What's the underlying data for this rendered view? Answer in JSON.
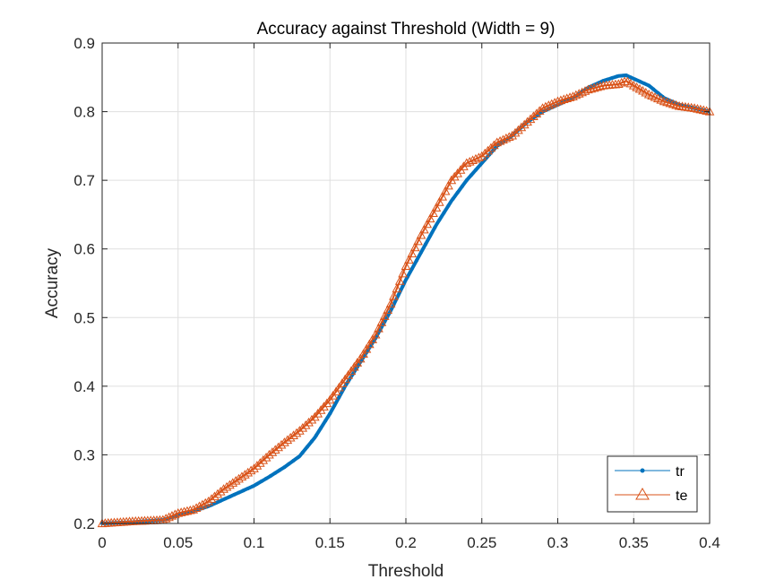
{
  "chart_data": {
    "type": "line",
    "title": "Accuracy against Threshold (Width = 9)",
    "xlabel": "Threshold",
    "ylabel": "Accuracy",
    "xlim": [
      0,
      0.4
    ],
    "ylim": [
      0.2,
      0.9
    ],
    "xticks": [
      0,
      0.05,
      0.1,
      0.15,
      0.2,
      0.25,
      0.3,
      0.35,
      0.4
    ],
    "xtick_labels": [
      "0",
      "0.05",
      "0.1",
      "0.15",
      "0.2",
      "0.25",
      "0.3",
      "0.35",
      "0.4"
    ],
    "yticks": [
      0.2,
      0.3,
      0.4,
      0.5,
      0.6,
      0.7,
      0.8,
      0.9
    ],
    "ytick_labels": [
      "0.2",
      "0.3",
      "0.4",
      "0.5",
      "0.6",
      "0.7",
      "0.8",
      "0.9"
    ],
    "grid": true,
    "legend_position": "bottom-right",
    "series": [
      {
        "name": "tr",
        "color": "#0072BD",
        "marker": "dot",
        "x": [
          0,
          0.02,
          0.04,
          0.05,
          0.06,
          0.07,
          0.08,
          0.09,
          0.1,
          0.11,
          0.12,
          0.13,
          0.14,
          0.15,
          0.16,
          0.17,
          0.18,
          0.19,
          0.2,
          0.21,
          0.22,
          0.23,
          0.24,
          0.25,
          0.26,
          0.27,
          0.28,
          0.29,
          0.3,
          0.31,
          0.32,
          0.33,
          0.34,
          0.345,
          0.35,
          0.36,
          0.37,
          0.38,
          0.39,
          0.4
        ],
        "y": [
          0.2,
          0.202,
          0.205,
          0.212,
          0.218,
          0.225,
          0.235,
          0.245,
          0.255,
          0.268,
          0.282,
          0.298,
          0.325,
          0.36,
          0.4,
          0.435,
          0.47,
          0.51,
          0.555,
          0.595,
          0.635,
          0.67,
          0.7,
          0.725,
          0.75,
          0.765,
          0.785,
          0.8,
          0.81,
          0.82,
          0.835,
          0.845,
          0.852,
          0.853,
          0.848,
          0.838,
          0.82,
          0.81,
          0.805,
          0.8
        ]
      },
      {
        "name": "te",
        "color": "#D95319",
        "marker": "triangle",
        "x": [
          0,
          0.02,
          0.04,
          0.05,
          0.06,
          0.07,
          0.08,
          0.09,
          0.1,
          0.11,
          0.12,
          0.13,
          0.14,
          0.15,
          0.16,
          0.17,
          0.18,
          0.19,
          0.2,
          0.21,
          0.22,
          0.23,
          0.24,
          0.25,
          0.26,
          0.27,
          0.28,
          0.29,
          0.3,
          0.31,
          0.32,
          0.33,
          0.34,
          0.345,
          0.35,
          0.36,
          0.37,
          0.38,
          0.39,
          0.4
        ],
        "y": [
          0.2,
          0.203,
          0.205,
          0.215,
          0.22,
          0.232,
          0.25,
          0.265,
          0.28,
          0.3,
          0.318,
          0.335,
          0.355,
          0.38,
          0.41,
          0.44,
          0.475,
          0.52,
          0.575,
          0.62,
          0.66,
          0.7,
          0.725,
          0.735,
          0.755,
          0.765,
          0.785,
          0.805,
          0.815,
          0.822,
          0.832,
          0.838,
          0.84,
          0.845,
          0.838,
          0.825,
          0.815,
          0.808,
          0.805,
          0.8
        ]
      }
    ]
  }
}
